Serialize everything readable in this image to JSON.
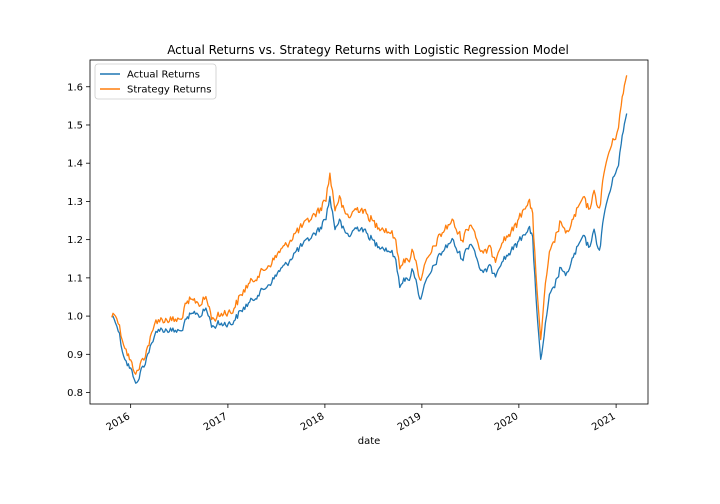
{
  "chart_data": {
    "type": "line",
    "title": "Actual Returns vs. Strategy Returns with Logistic Regression Model",
    "xlabel": "date",
    "ylabel": "",
    "xlim": [
      "2015-08-01",
      "2021-05-01"
    ],
    "ylim": [
      0.77,
      1.67
    ],
    "yticks": [
      0.8,
      0.9,
      1.0,
      1.1,
      1.2,
      1.3,
      1.4,
      1.5,
      1.6
    ],
    "ytick_labels": [
      "0.8",
      "0.9",
      "1.0",
      "1.1",
      "1.2",
      "1.3",
      "1.4",
      "1.5",
      "1.6"
    ],
    "xticks": [
      "2016-01-01",
      "2017-01-01",
      "2018-01-01",
      "2019-01-01",
      "2020-01-01",
      "2021-01-01"
    ],
    "xtick_labels": [
      "2016",
      "2017",
      "2018",
      "2019",
      "2020",
      "2021"
    ],
    "grid": false,
    "legend_position": "top-left",
    "series": [
      {
        "name": "Actual Returns",
        "color": "#1f77b4",
        "points": [
          [
            "2015-10-22",
            1.0
          ],
          [
            "2015-11-05",
            0.99
          ],
          [
            "2015-11-20",
            0.95
          ],
          [
            "2015-12-01",
            0.91
          ],
          [
            "2015-12-15",
            0.88
          ],
          [
            "2016-01-01",
            0.86
          ],
          [
            "2016-01-15",
            0.84
          ],
          [
            "2016-01-25",
            0.82
          ],
          [
            "2016-02-10",
            0.86
          ],
          [
            "2016-02-25",
            0.88
          ],
          [
            "2016-03-10",
            0.91
          ],
          [
            "2016-03-25",
            0.93
          ],
          [
            "2016-04-05",
            0.96
          ],
          [
            "2016-04-10",
            0.965
          ],
          [
            "2016-07-10",
            0.96
          ],
          [
            "2016-07-20",
            0.98
          ],
          [
            "2016-08-10",
            1.0
          ],
          [
            "2016-09-01",
            1.01
          ],
          [
            "2016-09-20",
            1.0
          ],
          [
            "2016-10-10",
            1.02
          ],
          [
            "2016-11-05",
            0.97
          ],
          [
            "2016-11-25",
            0.98
          ],
          [
            "2016-12-20",
            0.98
          ],
          [
            "2017-01-15",
            0.98
          ],
          [
            "2017-02-15",
            1.01
          ],
          [
            "2017-03-15",
            1.03
          ],
          [
            "2017-04-15",
            1.05
          ],
          [
            "2017-05-15",
            1.07
          ],
          [
            "2017-06-15",
            1.09
          ],
          [
            "2017-07-15",
            1.12
          ],
          [
            "2017-08-15",
            1.14
          ],
          [
            "2017-09-15",
            1.17
          ],
          [
            "2017-10-15",
            1.19
          ],
          [
            "2017-11-15",
            1.21
          ],
          [
            "2017-12-15",
            1.23
          ],
          [
            "2018-01-05",
            1.26
          ],
          [
            "2018-01-20",
            1.31
          ],
          [
            "2018-02-08",
            1.23
          ],
          [
            "2018-02-25",
            1.25
          ],
          [
            "2018-03-15",
            1.22
          ],
          [
            "2018-04-05",
            1.21
          ],
          [
            "2018-04-25",
            1.23
          ],
          [
            "2018-05-20",
            1.23
          ],
          [
            "2018-06-15",
            1.21
          ],
          [
            "2018-07-10",
            1.19
          ],
          [
            "2018-08-05",
            1.18
          ],
          [
            "2018-09-01",
            1.17
          ],
          [
            "2018-09-20",
            1.16
          ],
          [
            "2018-10-10",
            1.08
          ],
          [
            "2018-10-25",
            1.1
          ],
          [
            "2018-11-10",
            1.09
          ],
          [
            "2018-11-25",
            1.12
          ],
          [
            "2018-12-10",
            1.1
          ],
          [
            "2018-12-24",
            1.04
          ],
          [
            "2019-01-05",
            1.07
          ],
          [
            "2019-01-25",
            1.1
          ],
          [
            "2019-02-15",
            1.13
          ],
          [
            "2019-03-10",
            1.16
          ],
          [
            "2019-04-01",
            1.18
          ],
          [
            "2019-04-25",
            1.2
          ],
          [
            "2019-05-15",
            1.17
          ],
          [
            "2019-06-05",
            1.15
          ],
          [
            "2019-06-20",
            1.18
          ],
          [
            "2019-07-10",
            1.19
          ],
          [
            "2019-08-05",
            1.13
          ],
          [
            "2019-08-20",
            1.11
          ],
          [
            "2019-09-10",
            1.13
          ],
          [
            "2019-10-05",
            1.11
          ],
          [
            "2019-10-25",
            1.14
          ],
          [
            "2019-11-20",
            1.16
          ],
          [
            "2019-12-15",
            1.18
          ],
          [
            "2020-01-05",
            1.2
          ],
          [
            "2020-01-25",
            1.22
          ],
          [
            "2020-02-10",
            1.23
          ],
          [
            "2020-02-22",
            1.2
          ],
          [
            "2020-03-05",
            1.06
          ],
          [
            "2020-03-12",
            0.98
          ],
          [
            "2020-03-23",
            0.88
          ],
          [
            "2020-04-05",
            0.95
          ],
          [
            "2020-04-25",
            1.05
          ],
          [
            "2020-05-15",
            1.08
          ],
          [
            "2020-06-08",
            1.13
          ],
          [
            "2020-06-25",
            1.1
          ],
          [
            "2020-07-15",
            1.14
          ],
          [
            "2020-08-10",
            1.18
          ],
          [
            "2020-08-30",
            1.21
          ],
          [
            "2020-09-20",
            1.18
          ],
          [
            "2020-10-10",
            1.22
          ],
          [
            "2020-10-30",
            1.17
          ],
          [
            "2020-11-20",
            1.28
          ],
          [
            "2020-12-10",
            1.33
          ],
          [
            "2020-12-30",
            1.38
          ],
          [
            "2021-01-10",
            1.4
          ],
          [
            "2021-01-20",
            1.45
          ],
          [
            "2021-02-01",
            1.5
          ],
          [
            "2021-02-10",
            1.53
          ]
        ]
      },
      {
        "name": "Strategy Returns",
        "color": "#ff7f0e",
        "points": [
          [
            "2015-10-22",
            1.0
          ],
          [
            "2015-11-05",
            1.01
          ],
          [
            "2015-11-20",
            0.97
          ],
          [
            "2015-12-01",
            0.94
          ],
          [
            "2015-12-15",
            0.91
          ],
          [
            "2016-01-01",
            0.88
          ],
          [
            "2016-01-15",
            0.86
          ],
          [
            "2016-01-25",
            0.85
          ],
          [
            "2016-02-10",
            0.88
          ],
          [
            "2016-02-25",
            0.9
          ],
          [
            "2016-03-10",
            0.93
          ],
          [
            "2016-03-25",
            0.96
          ],
          [
            "2016-04-05",
            0.99
          ],
          [
            "2016-04-10",
            0.99
          ],
          [
            "2016-07-10",
            0.99
          ],
          [
            "2016-07-20",
            1.02
          ],
          [
            "2016-08-10",
            1.04
          ],
          [
            "2016-09-01",
            1.04
          ],
          [
            "2016-09-20",
            1.03
          ],
          [
            "2016-10-10",
            1.05
          ],
          [
            "2016-11-05",
            0.99
          ],
          [
            "2016-11-25",
            1.0
          ],
          [
            "2016-12-20",
            1.01
          ],
          [
            "2017-01-15",
            1.01
          ],
          [
            "2017-02-15",
            1.05
          ],
          [
            "2017-03-15",
            1.08
          ],
          [
            "2017-04-15",
            1.1
          ],
          [
            "2017-05-15",
            1.12
          ],
          [
            "2017-06-15",
            1.14
          ],
          [
            "2017-07-15",
            1.17
          ],
          [
            "2017-08-15",
            1.19
          ],
          [
            "2017-09-15",
            1.22
          ],
          [
            "2017-10-15",
            1.24
          ],
          [
            "2017-11-15",
            1.26
          ],
          [
            "2017-12-15",
            1.28
          ],
          [
            "2018-01-05",
            1.31
          ],
          [
            "2018-01-20",
            1.37
          ],
          [
            "2018-02-08",
            1.28
          ],
          [
            "2018-02-25",
            1.31
          ],
          [
            "2018-03-15",
            1.27
          ],
          [
            "2018-04-05",
            1.26
          ],
          [
            "2018-04-25",
            1.28
          ],
          [
            "2018-05-20",
            1.28
          ],
          [
            "2018-06-15",
            1.26
          ],
          [
            "2018-07-10",
            1.24
          ],
          [
            "2018-08-05",
            1.23
          ],
          [
            "2018-09-01",
            1.22
          ],
          [
            "2018-09-20",
            1.21
          ],
          [
            "2018-10-10",
            1.13
          ],
          [
            "2018-10-25",
            1.15
          ],
          [
            "2018-11-10",
            1.14
          ],
          [
            "2018-11-25",
            1.17
          ],
          [
            "2018-12-10",
            1.15
          ],
          [
            "2018-12-24",
            1.09
          ],
          [
            "2019-01-05",
            1.12
          ],
          [
            "2019-01-25",
            1.15
          ],
          [
            "2019-02-15",
            1.18
          ],
          [
            "2019-03-10",
            1.21
          ],
          [
            "2019-04-01",
            1.23
          ],
          [
            "2019-04-25",
            1.25
          ],
          [
            "2019-05-15",
            1.22
          ],
          [
            "2019-06-05",
            1.2
          ],
          [
            "2019-06-20",
            1.23
          ],
          [
            "2019-07-10",
            1.24
          ],
          [
            "2019-08-05",
            1.18
          ],
          [
            "2019-08-20",
            1.16
          ],
          [
            "2019-09-10",
            1.18
          ],
          [
            "2019-10-05",
            1.15
          ],
          [
            "2019-10-25",
            1.19
          ],
          [
            "2019-11-20",
            1.21
          ],
          [
            "2019-12-15",
            1.23
          ],
          [
            "2020-01-05",
            1.26
          ],
          [
            "2020-01-25",
            1.29
          ],
          [
            "2020-02-10",
            1.3
          ],
          [
            "2020-02-22",
            1.26
          ],
          [
            "2020-03-05",
            1.12
          ],
          [
            "2020-03-12",
            1.04
          ],
          [
            "2020-03-23",
            0.93
          ],
          [
            "2020-04-05",
            1.05
          ],
          [
            "2020-04-25",
            1.16
          ],
          [
            "2020-05-15",
            1.2
          ],
          [
            "2020-06-08",
            1.25
          ],
          [
            "2020-06-25",
            1.21
          ],
          [
            "2020-07-15",
            1.24
          ],
          [
            "2020-08-10",
            1.28
          ],
          [
            "2020-08-30",
            1.31
          ],
          [
            "2020-09-20",
            1.28
          ],
          [
            "2020-10-10",
            1.32
          ],
          [
            "2020-10-30",
            1.28
          ],
          [
            "2020-11-20",
            1.39
          ],
          [
            "2020-12-10",
            1.44
          ],
          [
            "2020-12-30",
            1.47
          ],
          [
            "2021-01-10",
            1.5
          ],
          [
            "2021-01-20",
            1.55
          ],
          [
            "2021-02-01",
            1.6
          ],
          [
            "2021-02-10",
            1.63
          ]
        ]
      }
    ]
  }
}
